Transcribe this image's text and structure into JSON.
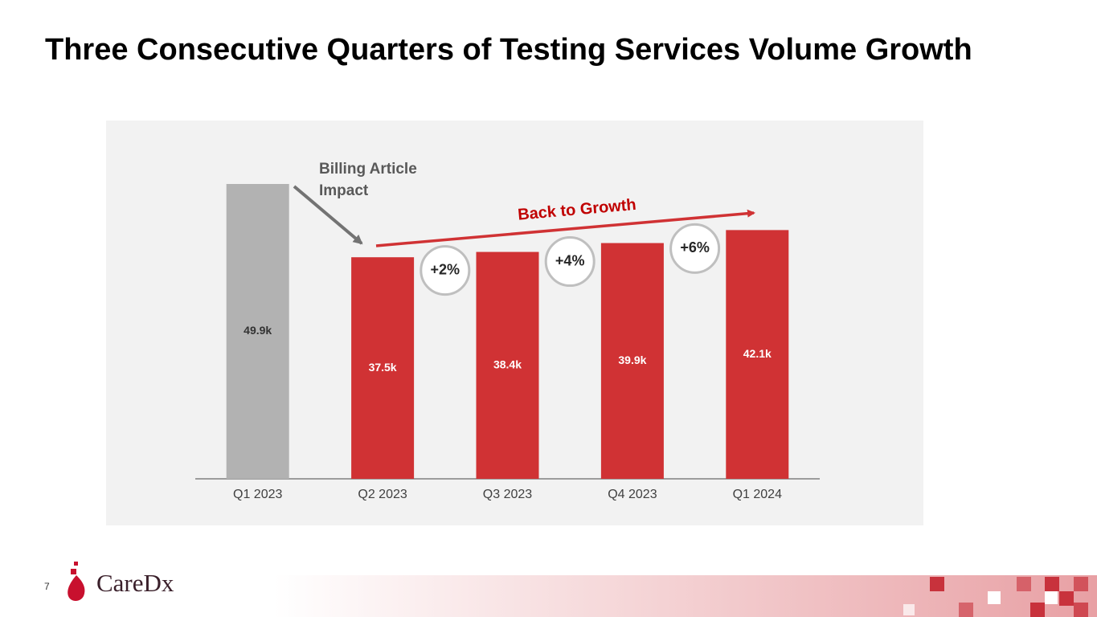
{
  "chart_data": {
    "type": "bar",
    "title": "Three Consecutive Quarters of Testing Services Volume Growth",
    "categories": [
      "Q1 2023",
      "Q2 2023",
      "Q3 2023",
      "Q4 2023",
      "Q1 2024"
    ],
    "values": [
      49.9,
      37.5,
      38.4,
      39.9,
      42.1
    ],
    "value_labels": [
      "49.9k",
      "37.5k",
      "38.4k",
      "39.9k",
      "42.1k"
    ],
    "colors": [
      "#b2b2b2",
      "#d03234",
      "#d03234",
      "#d03234",
      "#d03234"
    ],
    "growth_labels": [
      "+2%",
      "+4%",
      "+6%"
    ],
    "annotations": [
      "Billing Article",
      "Impact",
      "Back to Growth"
    ]
  },
  "footer": {
    "page_number": "7",
    "logo": "CareDx"
  }
}
